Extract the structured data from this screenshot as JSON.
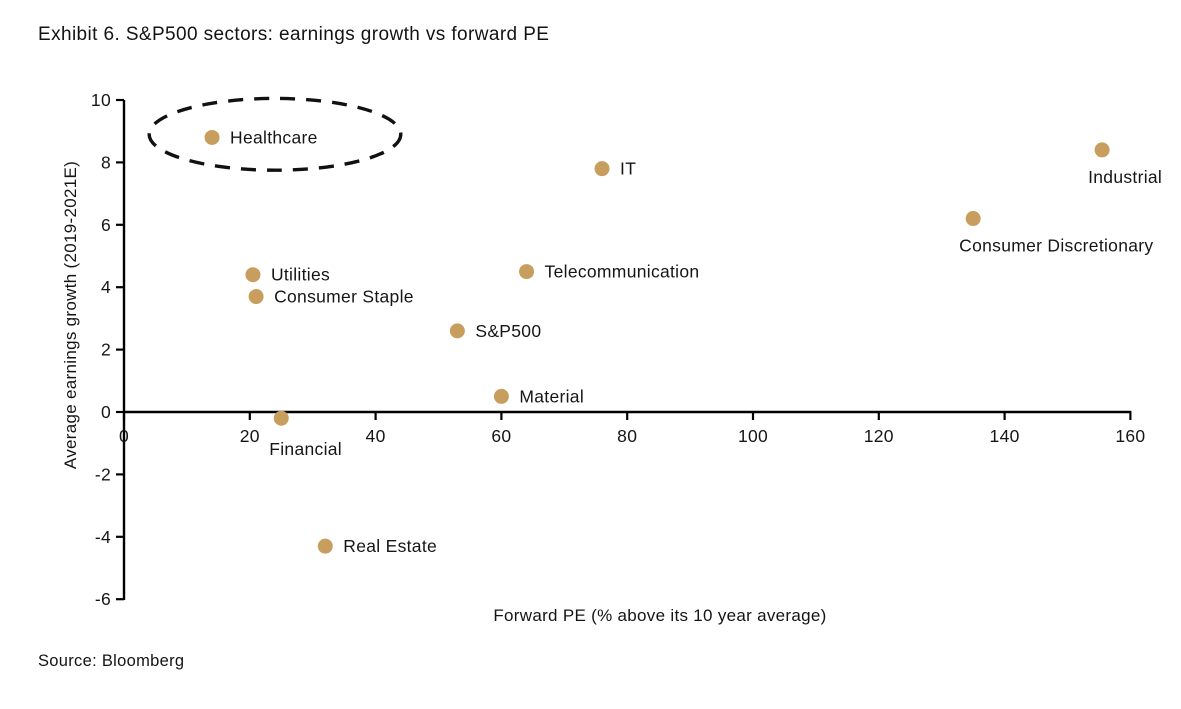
{
  "title": "Exhibit 6. S&P500 sectors: earnings growth vs forward PE",
  "source": "Source: Bloomberg",
  "chart_data": {
    "type": "scatter",
    "title": "Exhibit 6. S&P500 sectors: earnings growth vs forward PE",
    "xlabel": "Forward PE (% above its 10 year average)",
    "ylabel": "Average earnings growth (2019-2021E)",
    "xlim": [
      0,
      160
    ],
    "ylim": [
      -6,
      10
    ],
    "x_ticks": [
      0,
      20,
      40,
      60,
      80,
      100,
      120,
      140,
      160
    ],
    "y_ticks": [
      -6,
      -4,
      -2,
      0,
      2,
      4,
      6,
      8,
      10
    ],
    "grid": false,
    "legend": false,
    "marker_color": "#C89E5F",
    "axis_color": "#000000",
    "points": [
      {
        "label": "Healthcare",
        "x": 14,
        "y": 8.8,
        "label_pos": "right"
      },
      {
        "label": "Utilities",
        "x": 20.5,
        "y": 4.4,
        "label_pos": "right"
      },
      {
        "label": "Consumer Staple",
        "x": 21,
        "y": 3.7,
        "label_pos": "right"
      },
      {
        "label": "Financial",
        "x": 25,
        "y": -0.2,
        "label_pos": "below"
      },
      {
        "label": "Real Estate",
        "x": 32,
        "y": -4.3,
        "label_pos": "right"
      },
      {
        "label": "S&P500",
        "x": 53,
        "y": 2.6,
        "label_pos": "right"
      },
      {
        "label": "Material",
        "x": 60,
        "y": 0.5,
        "label_pos": "right"
      },
      {
        "label": "Telecommunication",
        "x": 64,
        "y": 4.5,
        "label_pos": "right"
      },
      {
        "label": "IT",
        "x": 76,
        "y": 7.8,
        "label_pos": "right"
      },
      {
        "label": "Consumer Discretionary",
        "x": 135,
        "y": 6.2,
        "label_pos": "below"
      },
      {
        "label": "Industrial",
        "x": 155.5,
        "y": 8.4,
        "label_pos": "below"
      }
    ],
    "annotation": {
      "shape": "dashed-ellipse",
      "around": "Healthcare",
      "cx": 24,
      "cy": 8.9,
      "rx": 20,
      "ry": 1.15
    }
  }
}
